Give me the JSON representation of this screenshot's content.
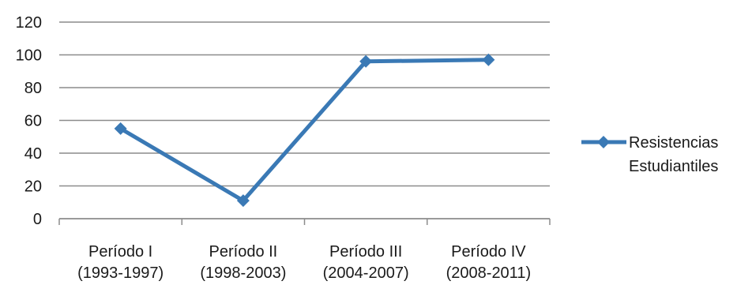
{
  "chart_data": {
    "type": "line",
    "title": "",
    "xlabel": "",
    "ylabel": "",
    "categories": [
      [
        "Período I",
        "(1993-1997)"
      ],
      [
        "Período II",
        "(1998-2003)"
      ],
      [
        "Período III",
        "(2004-2007)"
      ],
      [
        "Período IV",
        "(2008-2011)"
      ]
    ],
    "series": [
      {
        "name": [
          "Resistencias",
          "Estudiantiles"
        ],
        "values": [
          55,
          11,
          96,
          97
        ]
      }
    ],
    "ylim": [
      0,
      120
    ],
    "yticks": [
      "0",
      "20",
      "40",
      "60",
      "80",
      "100",
      "120"
    ],
    "grid": true,
    "legend_position": "right",
    "colors": {
      "series": "#3a79b5",
      "grid": "#8c8c8c",
      "axis": "#8c8c8c"
    },
    "marker": "diamond-icon"
  }
}
